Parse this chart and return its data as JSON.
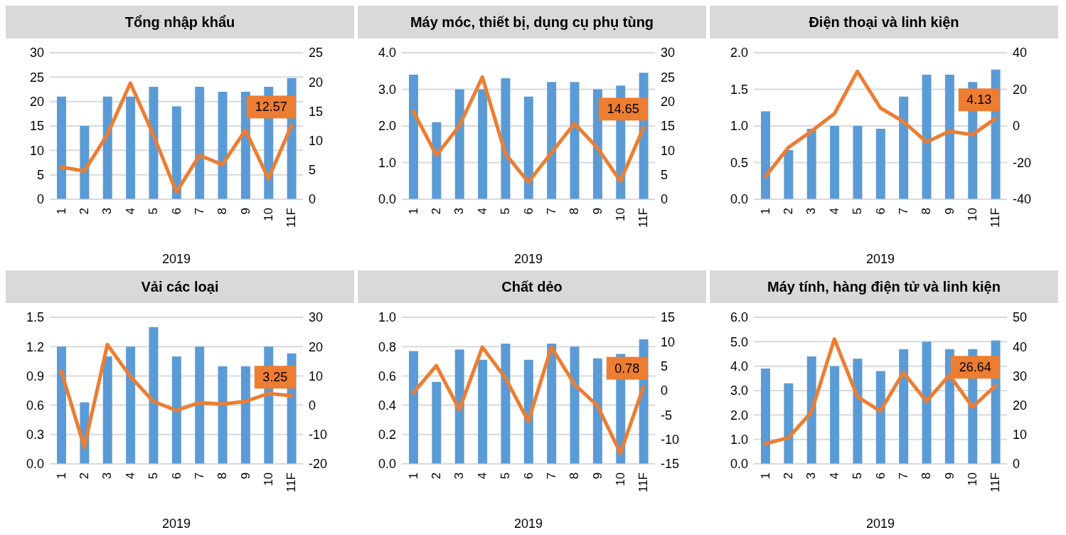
{
  "chart_data": [
    {
      "type": "bar",
      "title": "Tổng nhập khẩu",
      "xlabel": "2019",
      "categories": [
        "1",
        "2",
        "3",
        "4",
        "5",
        "6",
        "7",
        "8",
        "9",
        "10",
        "11F"
      ],
      "ylim": [
        0,
        30
      ],
      "yticks": [
        0,
        5,
        10,
        15,
        20,
        25,
        30
      ],
      "y2lim": [
        0,
        25
      ],
      "y2ticks": [
        0,
        5,
        10,
        15,
        20,
        25
      ],
      "grid": "y",
      "series": [
        {
          "color": "#5b9bd5",
          "values": [
            21,
            15,
            21,
            21,
            23,
            19,
            23,
            22,
            22,
            23,
            24.8
          ]
        },
        {
          "type": "line",
          "axis": "y2",
          "color": "#ed7d31",
          "values": [
            5.5,
            4.8,
            11,
            19.8,
            11,
            1.2,
            7.5,
            5.9,
            11.8,
            3.5,
            12.57
          ],
          "value_labels": [
            null,
            null,
            null,
            null,
            null,
            null,
            null,
            null,
            null,
            null,
            "12.57"
          ]
        }
      ]
    },
    {
      "type": "bar",
      "title": "Máy móc, thiết bị, dụng cụ phụ tùng",
      "xlabel": "2019",
      "categories": [
        "1",
        "2",
        "3",
        "4",
        "5",
        "6",
        "7",
        "8",
        "9",
        "10",
        "11F"
      ],
      "ylim": [
        0,
        4
      ],
      "yticks": [
        {
          "value": 0,
          "label": "0.0"
        },
        {
          "value": 1,
          "label": "1.0"
        },
        {
          "value": 2,
          "label": "2.0"
        },
        {
          "value": 3,
          "label": "3.0"
        },
        {
          "value": 4,
          "label": "4.0"
        }
      ],
      "y2lim": [
        0,
        30
      ],
      "y2ticks": [
        0,
        5,
        10,
        15,
        20,
        25,
        30
      ],
      "grid": "y",
      "series": [
        {
          "color": "#5b9bd5",
          "values": [
            3.4,
            2.1,
            3.0,
            3.0,
            3.3,
            2.8,
            3.2,
            3.2,
            3.0,
            3.1,
            3.45
          ]
        },
        {
          "type": "line",
          "axis": "y2",
          "color": "#ed7d31",
          "values": [
            18,
            9,
            15,
            25,
            9.3,
            3.5,
            9.5,
            15.5,
            10.5,
            3.7,
            14.65
          ],
          "value_labels": [
            null,
            null,
            null,
            null,
            null,
            null,
            null,
            null,
            null,
            null,
            "14.65"
          ]
        }
      ]
    },
    {
      "type": "bar",
      "title": "Điện thoại và linh kiện",
      "xlabel": "2019",
      "categories": [
        "1",
        "2",
        "3",
        "4",
        "5",
        "6",
        "7",
        "8",
        "9",
        "10",
        "11F"
      ],
      "ylim": [
        0,
        2
      ],
      "yticks": [
        {
          "value": 0,
          "label": "0.0"
        },
        0.5,
        {
          "value": 1,
          "label": "1.0"
        },
        1.5,
        {
          "value": 2,
          "label": "2.0"
        }
      ],
      "y2lim": [
        -40,
        40
      ],
      "y2ticks": [
        -40,
        -20,
        0,
        20,
        40
      ],
      "grid": "y",
      "series": [
        {
          "color": "#5b9bd5",
          "values": [
            1.2,
            0.67,
            0.96,
            1.0,
            1.0,
            0.96,
            1.4,
            1.7,
            1.7,
            1.6,
            1.77
          ]
        },
        {
          "type": "line",
          "axis": "y2",
          "color": "#ed7d31",
          "values": [
            -27.7,
            -11.8,
            -2.9,
            6.7,
            29.8,
            9.8,
            2.4,
            -8.8,
            -2.9,
            -4.8,
            4.13
          ],
          "value_labels": [
            null,
            null,
            null,
            null,
            null,
            null,
            null,
            null,
            null,
            null,
            "4.13"
          ]
        }
      ]
    },
    {
      "type": "bar",
      "title": "Vải các loại",
      "xlabel": "2019",
      "categories": [
        "1",
        "2",
        "3",
        "4",
        "5",
        "6",
        "7",
        "8",
        "9",
        "10",
        "11F"
      ],
      "ylim": [
        0,
        1.5
      ],
      "yticks": [
        {
          "value": 0,
          "label": "0.0"
        },
        0.3,
        0.6,
        0.9,
        1.2,
        1.5
      ],
      "y2lim": [
        -20,
        30
      ],
      "y2ticks": [
        -20,
        -10,
        0,
        10,
        20,
        30
      ],
      "grid": "y",
      "series": [
        {
          "color": "#5b9bd5",
          "values": [
            1.2,
            0.63,
            1.1,
            1.2,
            1.4,
            1.1,
            1.2,
            1.0,
            1.0,
            1.2,
            1.13
          ]
        },
        {
          "type": "line",
          "axis": "y2",
          "color": "#ed7d31",
          "values": [
            11.6,
            -14.3,
            20.7,
            9.8,
            1.3,
            -1.8,
            0.9,
            0.4,
            1.3,
            4,
            3.25
          ],
          "value_labels": [
            null,
            null,
            null,
            null,
            null,
            null,
            null,
            null,
            null,
            null,
            "3.25"
          ]
        }
      ]
    },
    {
      "type": "bar",
      "title": "Chất dẻo",
      "xlabel": "2019",
      "categories": [
        "1",
        "2",
        "3",
        "4",
        "5",
        "6",
        "7",
        "8",
        "9",
        "10",
        "11F"
      ],
      "ylim": [
        0,
        1
      ],
      "yticks": [
        {
          "value": 0,
          "label": "0.0"
        },
        0.2,
        0.4,
        0.6,
        0.8,
        {
          "value": 1,
          "label": "1.0"
        }
      ],
      "y2lim": [
        -15,
        15
      ],
      "y2ticks": [
        -15,
        -10,
        -5,
        0,
        5,
        10,
        15
      ],
      "grid": "y",
      "series": [
        {
          "color": "#5b9bd5",
          "values": [
            0.77,
            0.56,
            0.78,
            0.71,
            0.82,
            0.71,
            0.82,
            0.8,
            0.72,
            0.75,
            0.85
          ]
        },
        {
          "type": "line",
          "axis": "y2",
          "color": "#ed7d31",
          "values": [
            -0.5,
            5.1,
            -3.9,
            8.9,
            2.6,
            -6.3,
            8.9,
            1.3,
            -3.1,
            -12.8,
            0.78
          ],
          "value_labels": [
            null,
            null,
            null,
            null,
            null,
            null,
            null,
            null,
            null,
            null,
            "0.78"
          ]
        }
      ]
    },
    {
      "type": "bar",
      "title": "Máy tính, hàng điện tử và linh kiện",
      "xlabel": "2019",
      "categories": [
        "1",
        "2",
        "3",
        "4",
        "5",
        "6",
        "7",
        "8",
        "9",
        "10",
        "11F"
      ],
      "ylim": [
        0,
        6
      ],
      "yticks": [
        {
          "value": 0,
          "label": "0.0"
        },
        {
          "value": 1,
          "label": "1.0"
        },
        {
          "value": 2,
          "label": "2.0"
        },
        {
          "value": 3,
          "label": "3.0"
        },
        {
          "value": 4,
          "label": "4.0"
        },
        {
          "value": 5,
          "label": "5.0"
        },
        {
          "value": 6,
          "label": "6.0"
        }
      ],
      "y2lim": [
        0,
        50
      ],
      "y2ticks": [
        0,
        10,
        20,
        30,
        40,
        50
      ],
      "grid": "y",
      "series": [
        {
          "color": "#5b9bd5",
          "values": [
            3.9,
            3.3,
            4.4,
            4.0,
            4.3,
            3.8,
            4.7,
            5.0,
            4.7,
            4.7,
            5.05
          ]
        },
        {
          "type": "line",
          "axis": "y2",
          "color": "#ed7d31",
          "values": [
            6.9,
            8.9,
            17.6,
            42.6,
            22.9,
            18,
            31.2,
            21.3,
            30.3,
            19.4,
            26.64
          ],
          "value_labels": [
            null,
            null,
            null,
            null,
            null,
            null,
            null,
            null,
            null,
            null,
            "26.64"
          ]
        }
      ]
    }
  ]
}
